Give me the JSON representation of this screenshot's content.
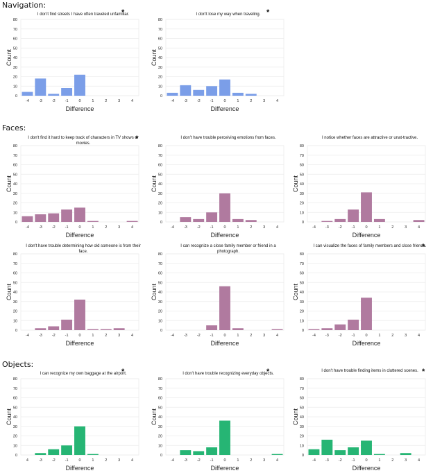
{
  "sections": {
    "navigation": "Navigation:",
    "faces": "Faces:",
    "objects": "Objects:"
  },
  "colors": {
    "navigation": "#7b9ee8",
    "faces": "#b07a9f",
    "objects": "#26b574"
  },
  "chart_data": [
    {
      "type": "bar",
      "section": "navigation",
      "title": "I don't find streets I have often traveled unfamiliar.",
      "significant": true,
      "xlabel": "Difference",
      "ylabel": "Count",
      "ylim": [
        0,
        80
      ],
      "yticks": [
        "0",
        "10",
        "20",
        "30",
        "40",
        "50",
        "60",
        "70",
        "80"
      ],
      "categories": [
        "-4",
        "-3",
        "-2",
        "-1",
        "0",
        "1",
        "2",
        "3",
        "4"
      ],
      "values": [
        4,
        18,
        2,
        8,
        22,
        0,
        0,
        0,
        0
      ]
    },
    {
      "type": "bar",
      "section": "navigation",
      "title": "I don't lose my way when traveling.",
      "significant": true,
      "xlabel": "Difference",
      "ylabel": "Count",
      "ylim": [
        0,
        80
      ],
      "yticks": [
        "0",
        "10",
        "20",
        "30",
        "40",
        "50",
        "60",
        "70",
        "80"
      ],
      "categories": [
        "-4",
        "-3",
        "-2",
        "-1",
        "0",
        "1",
        "2",
        "3",
        "4"
      ],
      "values": [
        3,
        11,
        6,
        10,
        17,
        3,
        2,
        0,
        0
      ]
    },
    {
      "type": "bar",
      "section": "faces",
      "title": "I don't find it hard to keep track of characters in TV shows or movies.",
      "significant": true,
      "xlabel": "Difference",
      "ylabel": "Count",
      "ylim": [
        0,
        80
      ],
      "yticks": [
        "0",
        "10",
        "20",
        "30",
        "40",
        "50",
        "60",
        "70",
        "80"
      ],
      "categories": [
        "-4",
        "-3",
        "-2",
        "-1",
        "0",
        "1",
        "2",
        "3",
        "4"
      ],
      "values": [
        6,
        8,
        9,
        13,
        15,
        1,
        0,
        0,
        1
      ]
    },
    {
      "type": "bar",
      "section": "faces",
      "title": "I don't have trouble perceiving emotions from faces.",
      "significant": false,
      "xlabel": "Difference",
      "ylabel": "Count",
      "ylim": [
        0,
        80
      ],
      "yticks": [
        "0",
        "10",
        "20",
        "30",
        "40",
        "50",
        "60",
        "70",
        "80"
      ],
      "categories": [
        "-4",
        "-3",
        "-2",
        "-1",
        "0",
        "1",
        "2",
        "3",
        "4"
      ],
      "values": [
        0,
        5,
        3,
        10,
        30,
        3,
        2,
        0,
        0
      ]
    },
    {
      "type": "bar",
      "section": "faces",
      "title": "I notice whether faces are attractive or unat-tractive.",
      "significant": false,
      "xlabel": "Difference",
      "ylabel": "Count",
      "ylim": [
        0,
        80
      ],
      "yticks": [
        "0",
        "10",
        "20",
        "30",
        "40",
        "50",
        "60",
        "70",
        "80"
      ],
      "categories": [
        "-4",
        "-3",
        "-2",
        "-1",
        "0",
        "1",
        "2",
        "3",
        "4"
      ],
      "values": [
        0,
        1,
        3,
        13,
        31,
        3,
        0,
        0,
        2
      ]
    },
    {
      "type": "bar",
      "section": "faces",
      "title": "I don't have trouble determining how old someone is from their face.",
      "significant": false,
      "xlabel": "Difference",
      "ylabel": "Count",
      "ylim": [
        0,
        80
      ],
      "yticks": [
        "0",
        "10",
        "20",
        "30",
        "40",
        "50",
        "60",
        "70",
        "80"
      ],
      "categories": [
        "-4",
        "-3",
        "-2",
        "-1",
        "0",
        "1",
        "2",
        "3",
        "4"
      ],
      "values": [
        0,
        2,
        4,
        11,
        32,
        1,
        1,
        2,
        0
      ]
    },
    {
      "type": "bar",
      "section": "faces",
      "title": "I can recognize a close family member or friend in a photograph.",
      "significant": false,
      "xlabel": "Difference",
      "ylabel": "Count",
      "ylim": [
        0,
        80
      ],
      "yticks": [
        "0",
        "10",
        "20",
        "30",
        "40",
        "50",
        "60",
        "70",
        "80"
      ],
      "categories": [
        "-4",
        "-3",
        "-2",
        "-1",
        "0",
        "1",
        "2",
        "3",
        "4"
      ],
      "values": [
        0,
        0,
        0,
        5,
        46,
        2,
        0,
        0,
        1
      ]
    },
    {
      "type": "bar",
      "section": "faces",
      "title": "I can visualize the faces of family members and close friends.",
      "significant": true,
      "xlabel": "Difference",
      "ylabel": "Count",
      "ylim": [
        0,
        80
      ],
      "yticks": [
        "0",
        "10",
        "20",
        "30",
        "40",
        "50",
        "60",
        "70",
        "80"
      ],
      "categories": [
        "-4",
        "-3",
        "-2",
        "-1",
        "0",
        "1",
        "2",
        "3",
        "4"
      ],
      "values": [
        1,
        2,
        6,
        11,
        34,
        0,
        0,
        0,
        0
      ]
    },
    {
      "type": "bar",
      "section": "objects",
      "title": "I can recognize my own baggage at the airport.",
      "significant": true,
      "xlabel": "Difference",
      "ylabel": "Count",
      "ylim": [
        0,
        80
      ],
      "yticks": [
        "0",
        "10",
        "20",
        "30",
        "40",
        "50",
        "60",
        "70",
        "80"
      ],
      "categories": [
        "4",
        "-3",
        "-2",
        "-1",
        "0",
        "1",
        "2",
        "3",
        "4"
      ],
      "values": [
        0,
        2,
        6,
        10,
        30,
        1,
        0,
        0,
        0
      ]
    },
    {
      "type": "bar",
      "section": "objects",
      "title": "I don't have trouble recognizing everyday objects.",
      "significant": true,
      "xlabel": "Difference",
      "ylabel": "Count",
      "ylim": [
        0,
        80
      ],
      "yticks": [
        "0",
        "10",
        "20",
        "30",
        "40",
        "50",
        "60",
        "70",
        "80"
      ],
      "categories": [
        "-4",
        "-3",
        "-2",
        "-1",
        "0",
        "1",
        "2",
        "3",
        "4"
      ],
      "values": [
        0,
        5,
        4,
        8,
        36,
        0,
        0,
        0,
        1
      ]
    },
    {
      "type": "bar",
      "section": "objects",
      "title": "I don't have trouble finding items in cluttered scenes.",
      "significant": true,
      "xlabel": "Difference",
      "ylabel": "Count",
      "ylim": [
        0,
        80
      ],
      "yticks": [
        "0",
        "10",
        "20",
        "30",
        "40",
        "50",
        "60",
        "70",
        "80"
      ],
      "categories": [
        "-4",
        "-3",
        "-2",
        "-1",
        "0",
        "1",
        "2",
        "3",
        "4"
      ],
      "values": [
        6,
        16,
        5,
        8,
        15,
        1,
        0,
        2,
        0
      ]
    }
  ]
}
